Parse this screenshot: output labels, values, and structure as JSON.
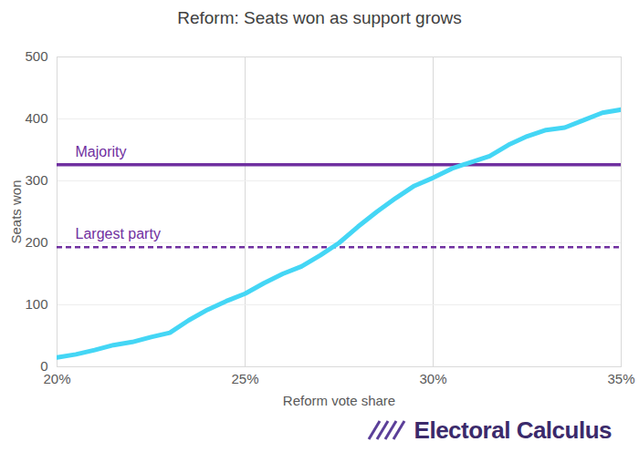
{
  "chart_data": {
    "type": "line",
    "title": "Reform: Seats won as support grows",
    "x_label": "Reform vote share",
    "y_label": "Seats won",
    "x": [
      20,
      20.5,
      21,
      21.5,
      22,
      22.5,
      23,
      23.5,
      24,
      24.5,
      25,
      25.5,
      26,
      26.5,
      27,
      27.5,
      28,
      28.5,
      29,
      29.5,
      30,
      30.5,
      31,
      31.5,
      32,
      32.5,
      33,
      33.5,
      34,
      34.5,
      35
    ],
    "series": [
      {
        "name": "Reform",
        "color": "#44d6f5",
        "values": [
          15,
          20,
          27,
          35,
          40,
          48,
          55,
          75,
          92,
          106,
          118,
          135,
          150,
          162,
          180,
          200,
          226,
          250,
          272,
          292,
          305,
          320,
          330,
          340,
          358,
          372,
          382,
          386,
          398,
          410,
          415
        ]
      }
    ],
    "reference_lines": [
      {
        "label": "Majority",
        "value": 326,
        "color": "#7030a0",
        "line_style": "solid"
      },
      {
        "label": "Largest party",
        "value": 193,
        "color": "#7030a0",
        "line_style": "dashed"
      }
    ],
    "xlim": [
      20,
      35
    ],
    "xticks": [
      {
        "value": 20,
        "label": "20%"
      },
      {
        "value": 25,
        "label": "25%"
      },
      {
        "value": 30,
        "label": "30%"
      },
      {
        "value": 35,
        "label": "35%"
      }
    ],
    "ylim": [
      0,
      500
    ],
    "yticks": [
      0,
      100,
      200,
      300,
      400,
      500
    ],
    "grid": true,
    "source": "Electoral Calculus"
  }
}
